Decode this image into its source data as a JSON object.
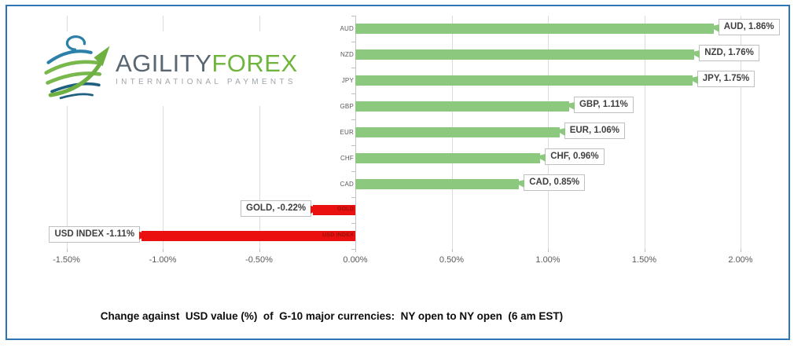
{
  "logo": {
    "brand_primary": "AGILITY",
    "brand_secondary": "FOREX",
    "tagline": "INTERNATIONAL PAYMENTS"
  },
  "frame": {
    "border_color": "#2E75B6"
  },
  "chart_data": {
    "type": "bar",
    "orientation": "horizontal",
    "categories": [
      "AUD",
      "NZD",
      "JPY",
      "GBP",
      "EUR",
      "CHF",
      "CAD",
      "GOLD",
      "USD INDEX"
    ],
    "values": [
      1.86,
      1.76,
      1.75,
      1.11,
      1.06,
      0.96,
      0.85,
      -0.22,
      -1.11
    ],
    "labels": [
      "AUD, 1.86%",
      "NZD, 1.76%",
      "JPY, 1.75%",
      "GBP, 1.11%",
      "EUR, 1.06%",
      "CHF, 0.96%",
      "CAD, 0.85%",
      "GOLD, -0.22%",
      "USD INDEX -1.11%"
    ],
    "x_ticks": [
      "-1.50%",
      "-1.00%",
      "-0.50%",
      "0.00%",
      "0.50%",
      "1.00%",
      "1.50%",
      "2.00%"
    ],
    "x_tick_values": [
      -1.5,
      -1.0,
      -0.5,
      0,
      0.5,
      1.0,
      1.5,
      2.0
    ],
    "xlim": [
      -1.6,
      2.1
    ],
    "gridlines": true,
    "legend": "none",
    "positive_color": "#8CC97E",
    "negative_color": "#E9100F",
    "negative_label_color": "#9B100C",
    "xlabel": "",
    "ylabel": "",
    "title": "Change against  USD value (%)  of  G-10 major currencies:  NY open to NY open  (6 am EST)"
  }
}
